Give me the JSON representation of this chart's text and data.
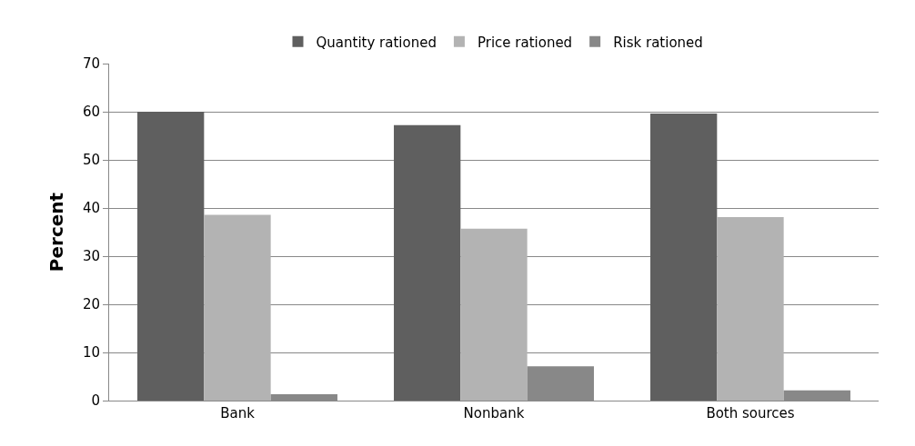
{
  "chart_data": {
    "type": "bar",
    "ylabel": "Percent",
    "categories": [
      "Bank",
      "Nonbank",
      "Both sources"
    ],
    "series": [
      {
        "name": "Quantity rationed",
        "color": "#5f5f5f",
        "values": [
          60.0,
          57.2,
          59.6
        ]
      },
      {
        "name": "Price rationed",
        "color": "#b3b3b3",
        "values": [
          38.6,
          35.7,
          38.1
        ]
      },
      {
        "name": "Risk rationed",
        "color": "#888888",
        "values": [
          1.3,
          7.1,
          2.1
        ]
      }
    ],
    "ylim": [
      0,
      70
    ],
    "yticks": [
      0,
      10,
      20,
      30,
      40,
      50,
      60,
      70
    ],
    "grid": "y",
    "legend": "top"
  }
}
